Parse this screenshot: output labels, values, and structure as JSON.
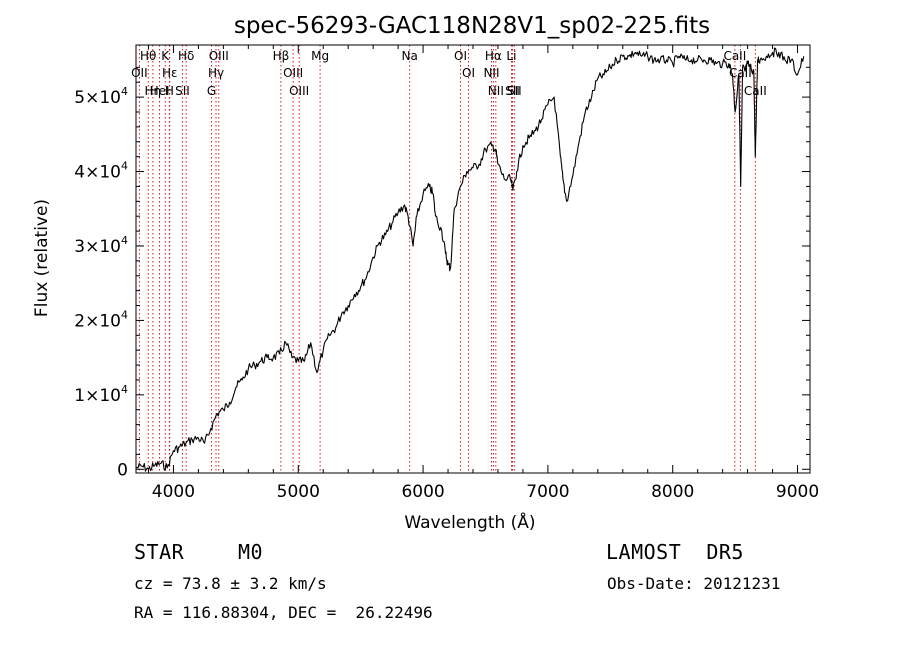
{
  "chart_data": {
    "type": "line",
    "title": "spec-56293-GAC118N28V1_sp02-225.fits",
    "xlabel": "Wavelength (Å)",
    "ylabel": "Flux (relative)",
    "xlim": [
      3700,
      9100
    ],
    "ylim": [
      -500,
      57000
    ],
    "x_ticks": [
      4000,
      5000,
      6000,
      7000,
      8000,
      9000
    ],
    "x_tick_labels": [
      "4000",
      "5000",
      "6000",
      "7000",
      "8000",
      "9000"
    ],
    "y_ticks": [
      0,
      10000,
      20000,
      30000,
      40000,
      50000
    ],
    "y_tick_labels": [
      {
        "base": "0",
        "exp": ""
      },
      {
        "base": "1×10",
        "exp": "4"
      },
      {
        "base": "2×10",
        "exp": "4"
      },
      {
        "base": "3×10",
        "exp": "4"
      },
      {
        "base": "4×10",
        "exp": "4"
      },
      {
        "base": "5×10",
        "exp": "4"
      }
    ],
    "line_color": "#000000",
    "series": [
      {
        "x": [
          3700,
          3750,
          3800,
          3850,
          3900,
          3950,
          4000,
          4050,
          4100,
          4150,
          4200,
          4250,
          4300,
          4350,
          4400,
          4450,
          4500,
          4550,
          4600,
          4650,
          4700,
          4750,
          4800,
          4850,
          4900,
          4950,
          5000,
          5050,
          5100,
          5150,
          5200,
          5250,
          5300,
          5350,
          5400,
          5450,
          5500,
          5550,
          5600,
          5650,
          5700,
          5750,
          5800,
          5850,
          5880,
          5920,
          5950,
          6000,
          6050,
          6080,
          6100,
          6150,
          6180,
          6200,
          6220,
          6250,
          6300,
          6350,
          6400,
          6450,
          6500,
          6550,
          6580,
          6600,
          6650,
          6700,
          6720,
          6750,
          6800,
          6850,
          6900,
          6950,
          7000,
          7050,
          7100,
          7120,
          7150,
          7200,
          7250,
          7300,
          7350,
          7400,
          7450,
          7500,
          7550,
          7600,
          7650,
          7700,
          7750,
          7800,
          7850,
          7900,
          7950,
          8000,
          8050,
          8100,
          8150,
          8200,
          8250,
          8300,
          8350,
          8400,
          8450,
          8480,
          8500,
          8530,
          8545,
          8560,
          8580,
          8600,
          8620,
          8650,
          8662,
          8680,
          8700,
          8750,
          8800,
          8850,
          8900,
          8950,
          9000,
          9050
        ],
        "y": [
          200,
          400,
          0,
          500,
          800,
          200,
          2500,
          3000,
          3500,
          4000,
          4200,
          3500,
          5500,
          7500,
          8000,
          9000,
          11000,
          12000,
          13500,
          14000,
          14500,
          15000,
          15000,
          15500,
          17000,
          15000,
          14500,
          14500,
          17000,
          13000,
          16000,
          18000,
          19000,
          21000,
          22000,
          23500,
          24500,
          26000,
          28500,
          30500,
          31500,
          33000,
          34500,
          35500,
          34000,
          30000,
          34000,
          37000,
          38000,
          37000,
          34000,
          32000,
          29000,
          27500,
          27000,
          35000,
          38000,
          40000,
          40500,
          41000,
          43000,
          43500,
          43000,
          41000,
          39000,
          39000,
          37500,
          40000,
          43500,
          44500,
          45500,
          47000,
          49000,
          50000,
          42000,
          39000,
          36000,
          39500,
          44000,
          48000,
          50000,
          52500,
          53000,
          54000,
          55000,
          55500,
          55500,
          56000,
          55500,
          55500,
          55000,
          55000,
          55000,
          54500,
          55500,
          55000,
          55000,
          55000,
          55000,
          55000,
          54500,
          54500,
          54500,
          53000,
          48000,
          53000,
          38000,
          54000,
          53500,
          54500,
          54000,
          53500,
          42000,
          55000,
          55000,
          55500,
          56000,
          56000,
          55000,
          55000,
          53000,
          55500
        ]
      }
    ],
    "lines": [
      {
        "name": "Hθ",
        "x": 3798
      },
      {
        "name": "OII",
        "x": 3727
      },
      {
        "name": "K",
        "x": 3934
      },
      {
        "name": "Hε",
        "x": 3970
      },
      {
        "name": "Hη",
        "x": 3835
      },
      {
        "name": "HeI",
        "x": 3889
      },
      {
        "name": "Hδ",
        "x": 4102
      },
      {
        "name": "SII",
        "x": 4072
      },
      {
        "name": "H",
        "x": 3968
      },
      {
        "name": "OIII",
        "x": 4363
      },
      {
        "name": "Hγ",
        "x": 4341
      },
      {
        "name": "G",
        "x": 4305
      },
      {
        "name": "Hβ",
        "x": 4861
      },
      {
        "name": "OIII",
        "x": 4959
      },
      {
        "name": "OIII",
        "x": 5007
      },
      {
        "name": "Mg",
        "x": 5175
      },
      {
        "name": "Na",
        "x": 5893
      },
      {
        "name": "OI",
        "x": 6300
      },
      {
        "name": "OI",
        "x": 6364
      },
      {
        "name": "Hα",
        "x": 6563
      },
      {
        "name": "NII",
        "x": 6548
      },
      {
        "name": "NII",
        "x": 6583
      },
      {
        "name": "SII",
        "x": 6716
      },
      {
        "name": "Li",
        "x": 6708
      },
      {
        "name": "SII",
        "x": 6731
      },
      {
        "name": "CaII",
        "x": 8498
      },
      {
        "name": "CaII",
        "x": 8542
      },
      {
        "name": "CaII",
        "x": 8662
      }
    ],
    "line_marker_color": "#cc0000"
  },
  "info": {
    "object_class": "STAR",
    "subclass": "M0",
    "survey": "LAMOST  DR5",
    "redshift": "cz = 73.8 ± 3.2 km/s",
    "obs_date": "Obs-Date: 20121231",
    "coords": "RA = 116.88304, DEC =  26.22496"
  }
}
